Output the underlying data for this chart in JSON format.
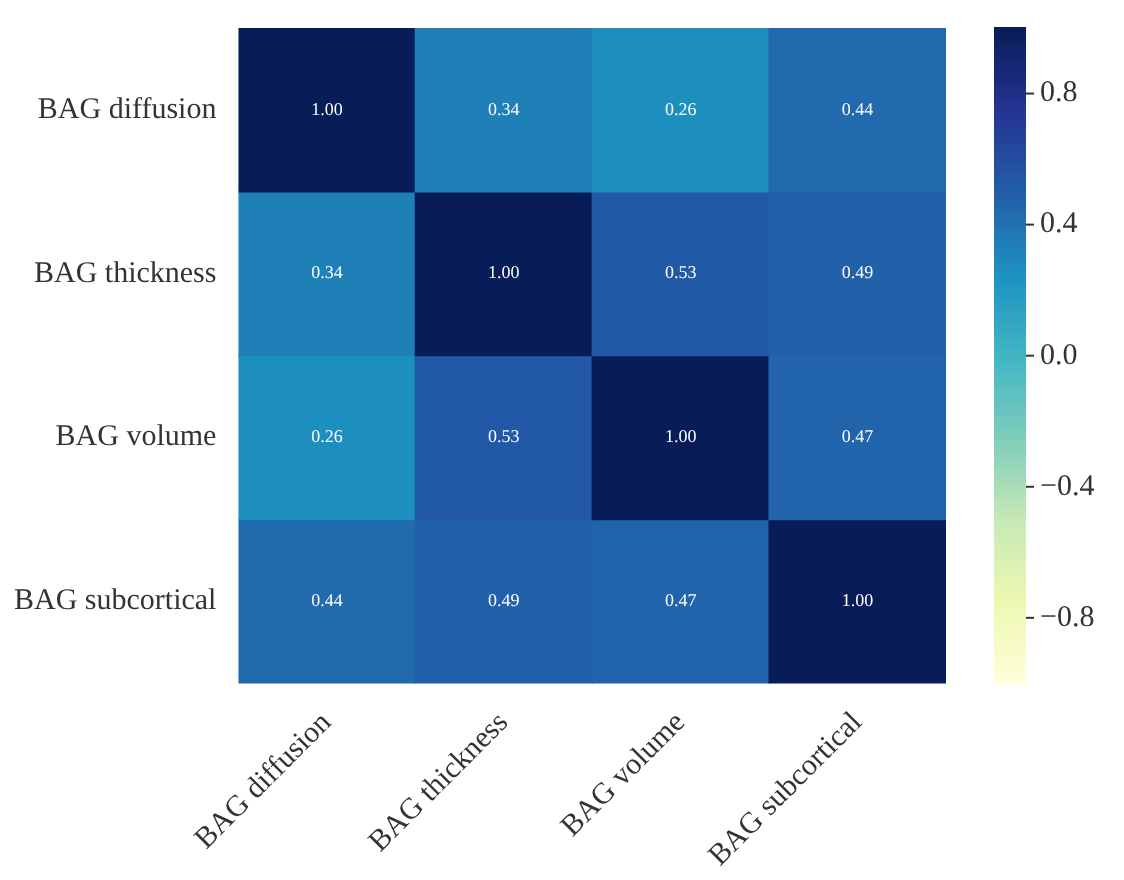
{
  "chart_data": {
    "type": "heatmap",
    "categories": [
      "BAG diffusion",
      "BAG thickness",
      "BAG volume",
      "BAG subcortical"
    ],
    "y_categories": [
      "BAG diffusion",
      "BAG thickness",
      "BAG volume",
      "BAG subcortical"
    ],
    "cells": [
      [
        1,
        0.34,
        0.26,
        0.44
      ],
      [
        0.34,
        1,
        0.53,
        0.49
      ],
      [
        0.26,
        0.53,
        1,
        0.47
      ],
      [
        0.44,
        0.49,
        0.47,
        1
      ]
    ],
    "cell_labels": [
      [
        "1.00",
        "0.34",
        "0.26",
        "0.44"
      ],
      [
        "0.34",
        "1.00",
        "0.53",
        "0.49"
      ],
      [
        "0.26",
        "0.53",
        "1.00",
        "0.47"
      ],
      [
        "0.44",
        "0.49",
        "0.47",
        "1.00"
      ]
    ],
    "clim": [
      -1,
      1
    ],
    "cticks": [
      {
        "value": -0.8,
        "label": "−0.8"
      },
      {
        "value": -0.4,
        "label": "−0.4"
      },
      {
        "value": 0,
        "label": "0.0"
      },
      0.4,
      0.8
    ]
  }
}
